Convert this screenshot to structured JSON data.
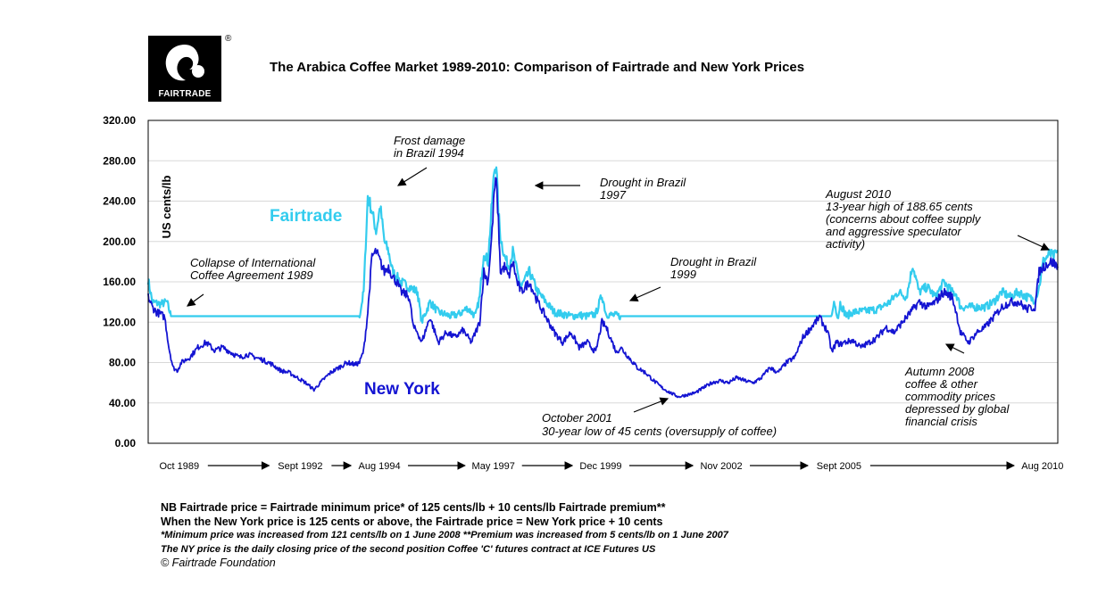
{
  "logo": {
    "text": "FAIRTRADE",
    "registered": "®"
  },
  "header": {
    "title": "The Arabica Coffee Market 1989-2010: Comparison of Fairtrade and New York Prices"
  },
  "colors": {
    "fairtrade": "#33CCEE",
    "newyork": "#1414D2",
    "plot_border": "#000000"
  },
  "chart_data": {
    "type": "line",
    "title": "The Arabica Coffee Market 1989-2010: Comparison of Fairtrade and New York Prices",
    "ylabel": "US cents/lb",
    "xlabel": "",
    "ylim": [
      0,
      320
    ],
    "xlim": [
      1989.0,
      2010.95
    ],
    "y_ticks": [
      "320.00",
      "280.00",
      "240.00",
      "200.00",
      "160.00",
      "120.00",
      "80.00",
      "40.00",
      "0.00"
    ],
    "y_tick_values": [
      320,
      280,
      240,
      200,
      160,
      120,
      80,
      40,
      0
    ],
    "x_ticks": [
      {
        "label": "Oct 1989",
        "x": 1989.75
      },
      {
        "label": "Sept 1992",
        "x": 1992.67
      },
      {
        "label": "Aug 1994",
        "x": 1994.58
      },
      {
        "label": "May 1997",
        "x": 1997.33
      },
      {
        "label": "Dec 1999",
        "x": 1999.92
      },
      {
        "label": "Nov 2002",
        "x": 2002.83
      },
      {
        "label": "Sept 2005",
        "x": 2005.67
      },
      {
        "label": "Aug 2010",
        "x": 2010.58
      }
    ],
    "series": [
      {
        "name": "Fairtrade",
        "x": [
          1989.0,
          1989.1,
          1989.3,
          1989.45,
          1989.55,
          1994.1,
          1994.2,
          1994.3,
          1994.4,
          1994.5,
          1994.6,
          1994.7,
          1994.8,
          1994.9,
          1995.1,
          1995.3,
          1995.5,
          1995.6,
          1995.8,
          1996.0,
          1996.3,
          1996.5,
          1996.7,
          1996.9,
          1997.0,
          1997.1,
          1997.2,
          1997.3,
          1997.35,
          1997.4,
          1997.45,
          1997.5,
          1997.6,
          1997.7,
          1997.8,
          1997.9,
          1998.0,
          1998.2,
          1998.4,
          1998.6,
          1998.8,
          1999.0,
          1999.2,
          1999.4,
          1999.6,
          1999.8,
          1999.95,
          2000.05,
          2000.2,
          2000.4,
          2005.5,
          2005.55,
          2005.65,
          2005.7,
          2005.85,
          2006.0,
          2006.3,
          2006.6,
          2006.9,
          2007.1,
          2007.3,
          2007.45,
          2007.6,
          2007.8,
          2008.0,
          2008.2,
          2008.4,
          2008.5,
          2008.6,
          2008.8,
          2009.0,
          2009.2,
          2009.4,
          2009.6,
          2009.8,
          2010.0,
          2010.2,
          2010.4,
          2010.5,
          2010.6,
          2010.75,
          2010.85,
          2010.95
        ],
        "values": [
          162,
          140,
          138,
          140,
          126,
          126,
          150,
          245,
          230,
          210,
          235,
          200,
          190,
          170,
          160,
          155,
          150,
          120,
          140,
          130,
          126,
          128,
          134,
          126,
          145,
          190,
          180,
          240,
          270,
          278,
          230,
          205,
          185,
          175,
          190,
          170,
          155,
          170,
          150,
          140,
          130,
          128,
          126,
          127,
          126,
          128,
          147,
          128,
          127,
          126,
          126,
          140,
          125,
          139,
          126,
          130,
          131,
          133,
          140,
          150,
          145,
          177,
          150,
          155,
          145,
          160,
          150,
          148,
          135,
          135,
          135,
          135,
          140,
          150,
          145,
          150,
          145,
          142,
          155,
          180,
          188,
          185,
          190
        ]
      },
      {
        "name": "New York",
        "x": [
          1989.0,
          1989.1,
          1989.2,
          1989.3,
          1989.4,
          1989.5,
          1989.6,
          1989.7,
          1989.8,
          1990.0,
          1990.2,
          1990.4,
          1990.6,
          1990.8,
          1991.0,
          1991.2,
          1991.4,
          1991.6,
          1991.8,
          1992.0,
          1992.2,
          1992.4,
          1992.6,
          1992.8,
          1993.0,
          1993.2,
          1993.4,
          1993.6,
          1993.8,
          1994.0,
          1994.1,
          1994.2,
          1994.3,
          1994.4,
          1994.5,
          1994.6,
          1994.7,
          1994.8,
          1994.9,
          1995.0,
          1995.1,
          1995.2,
          1995.3,
          1995.4,
          1995.5,
          1995.6,
          1995.8,
          1996.0,
          1996.2,
          1996.4,
          1996.6,
          1996.8,
          1997.0,
          1997.1,
          1997.2,
          1997.3,
          1997.35,
          1997.4,
          1997.45,
          1997.5,
          1997.6,
          1997.7,
          1997.8,
          1997.9,
          1998.0,
          1998.2,
          1998.4,
          1998.6,
          1998.8,
          1999.0,
          1999.2,
          1999.4,
          1999.6,
          1999.8,
          1999.95,
          2000.05,
          2000.2,
          2000.3,
          2000.4,
          2000.6,
          2000.8,
          2001.0,
          2001.2,
          2001.4,
          2001.6,
          2001.8,
          2002.0,
          2002.2,
          2002.4,
          2002.6,
          2002.8,
          2003.0,
          2003.2,
          2003.4,
          2003.6,
          2003.8,
          2004.0,
          2004.2,
          2004.4,
          2004.6,
          2004.8,
          2005.0,
          2005.2,
          2005.4,
          2005.5,
          2005.6,
          2005.7,
          2005.8,
          2006.0,
          2006.2,
          2006.4,
          2006.6,
          2006.8,
          2007.0,
          2007.2,
          2007.4,
          2007.6,
          2007.8,
          2008.0,
          2008.2,
          2008.4,
          2008.5,
          2008.6,
          2008.7,
          2008.8,
          2009.0,
          2009.2,
          2009.4,
          2009.6,
          2009.8,
          2010.0,
          2010.2,
          2010.4,
          2010.5,
          2010.6,
          2010.7,
          2010.8,
          2010.95
        ],
        "values": [
          145,
          135,
          130,
          128,
          125,
          95,
          75,
          72,
          80,
          85,
          95,
          100,
          92,
          95,
          90,
          85,
          88,
          85,
          82,
          78,
          72,
          70,
          65,
          60,
          53,
          62,
          70,
          75,
          80,
          78,
          80,
          92,
          130,
          185,
          190,
          180,
          170,
          175,
          165,
          160,
          150,
          148,
          145,
          115,
          110,
          100,
          125,
          100,
          110,
          105,
          112,
          100,
          120,
          170,
          160,
          210,
          250,
          260,
          220,
          170,
          175,
          165,
          180,
          160,
          150,
          160,
          140,
          125,
          110,
          100,
          110,
          95,
          100,
          90,
          120,
          115,
          100,
          90,
          95,
          85,
          75,
          70,
          62,
          55,
          50,
          46,
          48,
          50,
          55,
          60,
          62,
          60,
          65,
          62,
          60,
          65,
          75,
          70,
          80,
          85,
          105,
          115,
          125,
          110,
          90,
          100,
          98,
          100,
          102,
          95,
          100,
          105,
          115,
          110,
          120,
          130,
          140,
          135,
          140,
          150,
          145,
          130,
          110,
          105,
          100,
          110,
          115,
          125,
          135,
          140,
          140,
          133,
          135,
          170,
          175,
          178,
          180,
          175
        ]
      }
    ],
    "series_labels": [
      {
        "name": "Fairtrade",
        "text": "Fairtrade"
      },
      {
        "name": "New York",
        "text": "New York"
      }
    ],
    "annotations": [
      {
        "lines": [
          "Frost damage",
          "in Brazil 1994"
        ]
      },
      {
        "lines": [
          "Drought in Brazil",
          "1997"
        ]
      },
      {
        "lines": [
          "Collapse of International",
          "Coffee Agreement 1989"
        ]
      },
      {
        "lines": [
          "Drought in Brazil",
          "1999"
        ]
      },
      {
        "lines": [
          "August 2010",
          "13-year high of 188.65 cents",
          "(concerns about coffee supply",
          "and aggressive speculator",
          "activity)"
        ]
      },
      {
        "lines": [
          "Autumn 2008",
          "coffee & other",
          "commodity  prices",
          "depressed by global",
          "financial crisis"
        ]
      },
      {
        "lines": [
          "October 2001",
          "30-year low of 45 cents (oversupply of coffee)"
        ]
      }
    ]
  },
  "notes": {
    "line1": "NB Fairtrade price = Fairtrade minimum price* of 125 cents/lb + 10 cents/lb Fairtrade premium**",
    "line2": "When the New York price is 125 cents or above, the Fairtrade price = New York price + 10 cents",
    "line3": "*Minimum price was increased from 121 cents/lb on 1 June 2008 **Premium was increased from 5 cents/lb on 1 June 2007",
    "line4": "The NY price is the daily closing price of the second position Coffee 'C' futures contract at ICE Futures US",
    "line5": "© Fairtrade Foundation"
  }
}
